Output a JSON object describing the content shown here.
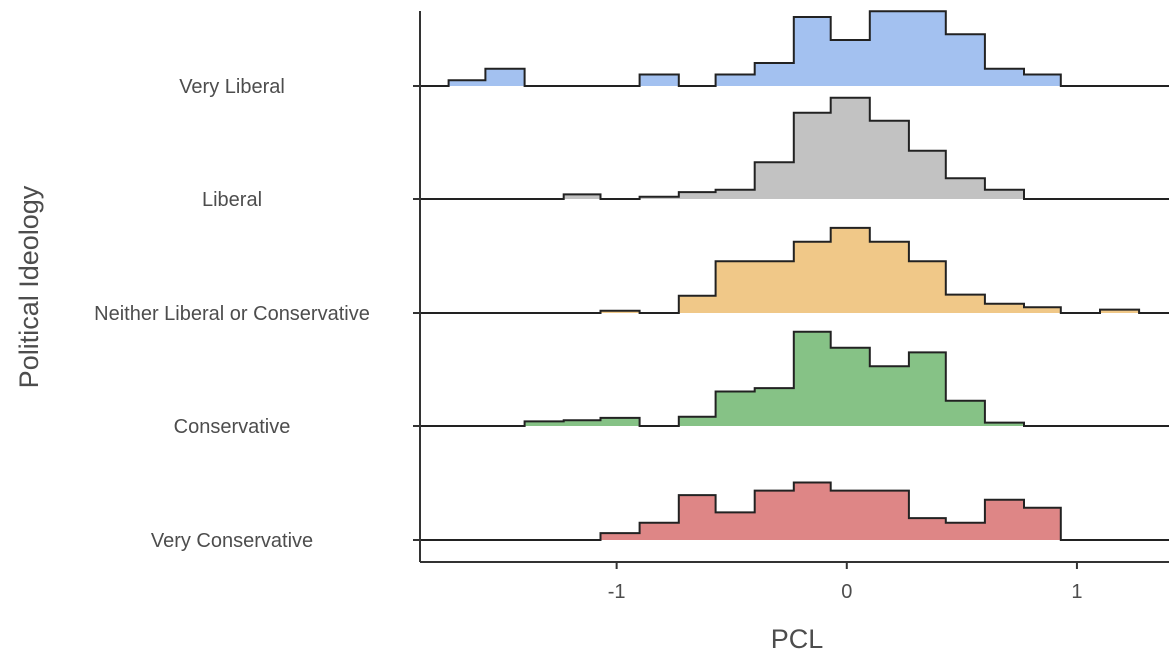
{
  "chart_data": {
    "type": "ridgeline-histogram",
    "xlabel": "PCL",
    "ylabel": "Political Ideology",
    "xlim": [
      -1.85,
      1.4
    ],
    "x_ticks": [
      -1,
      0,
      1
    ],
    "x_tick_labels": [
      "-1",
      "0",
      "1"
    ],
    "bin_edges": [
      -2.07,
      -1.9,
      -1.73,
      -1.57,
      -1.4,
      -1.23,
      -1.07,
      -0.9,
      -0.73,
      -0.57,
      -0.4,
      -0.23,
      -0.07,
      0.1,
      0.27,
      0.43,
      0.6,
      0.77,
      0.93,
      1.1,
      1.27,
      1.43
    ],
    "grid": false,
    "legend": "none",
    "series": [
      {
        "name": "Very Liberal",
        "color": "#a3c1f0",
        "counts": [
          0,
          0,
          0.5,
          1.5,
          0,
          0,
          0,
          1,
          0,
          1,
          2,
          6,
          4,
          6.5,
          6.5,
          4.5,
          1.5,
          1,
          0,
          0,
          0
        ]
      },
      {
        "name": "Liberal",
        "color": "#c2c2c2",
        "counts": [
          0,
          0,
          0,
          0,
          0,
          0.4,
          0,
          0.2,
          0.6,
          0.8,
          3.2,
          7.5,
          8.8,
          6.8,
          4.2,
          1.8,
          0.8,
          0,
          0,
          0,
          0
        ]
      },
      {
        "name": "Neither Liberal or Conservative",
        "color": "#f0c888",
        "counts": [
          0,
          0,
          0,
          0,
          0,
          0,
          0.2,
          0,
          1.5,
          4.5,
          4.5,
          6.2,
          7.4,
          6.2,
          4.5,
          1.6,
          0.8,
          0.5,
          0,
          0.3,
          0
        ]
      },
      {
        "name": "Conservative",
        "color": "#86c286",
        "counts": [
          0,
          0,
          0,
          0,
          0.4,
          0.5,
          0.7,
          0,
          0.8,
          3.0,
          3.3,
          8.2,
          6.8,
          5.2,
          6.4,
          2.2,
          0.3,
          0,
          0,
          0,
          0
        ]
      },
      {
        "name": "Very Conservative",
        "color": "#de8686",
        "counts": [
          0,
          0,
          0,
          0,
          0,
          0,
          0.6,
          1.5,
          3.9,
          2.4,
          4.3,
          5.0,
          4.3,
          4.3,
          1.9,
          1.5,
          3.5,
          2.8,
          0,
          0,
          0
        ]
      }
    ]
  }
}
